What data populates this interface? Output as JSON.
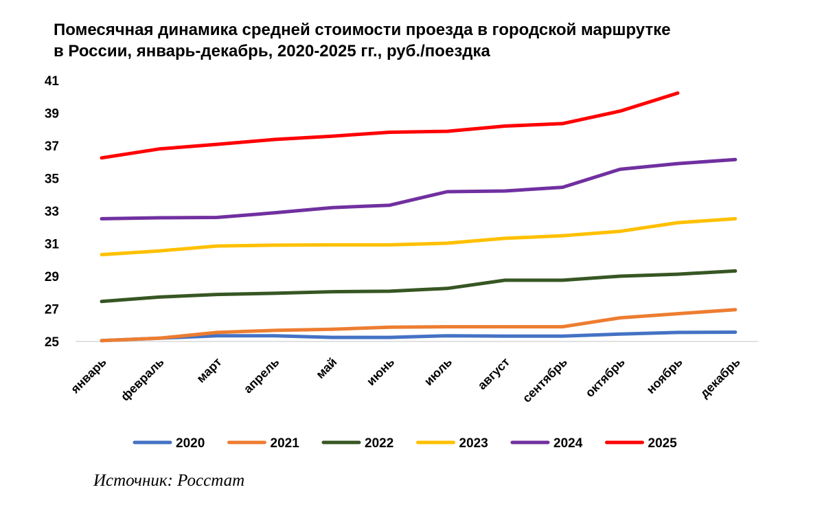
{
  "chart_data": {
    "type": "line",
    "title_line1": "Помесячная динамика средней стоимости проезда в городской маршрутке",
    "title_line2": "в России, январь-декабрь, 2020-2025 гг., руб./поездка",
    "xlabel": "",
    "ylabel": "",
    "ylim": [
      25,
      41
    ],
    "yticks": [
      25,
      27,
      29,
      31,
      33,
      35,
      37,
      39,
      41
    ],
    "categories": [
      "январь",
      "февраль",
      "март",
      "апрель",
      "май",
      "июнь",
      "июль",
      "август",
      "сентябрь",
      "октябрь",
      "ноябрь",
      "декабрь"
    ],
    "legend_position": "bottom",
    "series": [
      {
        "name": "2020",
        "color": "#4472C4",
        "values": [
          25.05,
          25.2,
          25.35,
          25.35,
          25.25,
          25.25,
          25.35,
          25.33,
          25.33,
          25.45,
          25.55,
          25.57
        ]
      },
      {
        "name": "2021",
        "color": "#ED7D31",
        "values": [
          25.05,
          25.2,
          25.55,
          25.68,
          25.75,
          25.87,
          25.9,
          25.9,
          25.9,
          26.45,
          26.7,
          26.95
        ]
      },
      {
        "name": "2022",
        "color": "#375623",
        "values": [
          27.45,
          27.72,
          27.88,
          27.95,
          28.05,
          28.08,
          28.25,
          28.75,
          28.75,
          29.0,
          29.12,
          29.32
        ]
      },
      {
        "name": "2023",
        "color": "#FFC000",
        "values": [
          30.32,
          30.55,
          30.85,
          30.9,
          30.92,
          30.92,
          31.02,
          31.32,
          31.48,
          31.75,
          32.28,
          32.52
        ]
      },
      {
        "name": "2024",
        "color": "#7030A0",
        "values": [
          32.52,
          32.58,
          32.6,
          32.88,
          33.2,
          33.35,
          34.18,
          34.22,
          34.45,
          35.55,
          35.9,
          36.15
        ]
      },
      {
        "name": "2025",
        "color": "#FF0000",
        "values": [
          36.25,
          36.8,
          37.08,
          37.38,
          37.58,
          37.82,
          37.88,
          38.2,
          38.35,
          39.12,
          40.22,
          null
        ]
      }
    ]
  },
  "source": "Источник: Росстат"
}
